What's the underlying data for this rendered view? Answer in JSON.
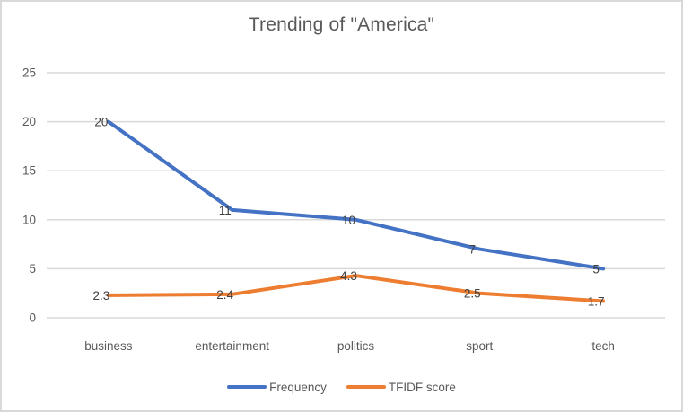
{
  "chart_data": {
    "type": "line",
    "title": "Trending of \"America\"",
    "categories": [
      "business",
      "entertainment",
      "politics",
      "sport",
      "tech"
    ],
    "series": [
      {
        "name": "Frequency",
        "color": "#4472C4",
        "values": [
          20,
          11,
          10,
          7,
          5
        ]
      },
      {
        "name": "TFIDF score",
        "color": "#ED7D31",
        "values": [
          2.3,
          2.4,
          4.3,
          2.5,
          1.7
        ]
      }
    ],
    "ylim": [
      0,
      25
    ],
    "yticks": [
      0,
      5,
      10,
      15,
      20,
      25
    ],
    "grid": true,
    "data_labels": true,
    "legend_position": "bottom"
  },
  "colors": {
    "gridline": "#d9d9d9",
    "axis_text": "#595959",
    "title_text": "#595959",
    "data_label": "#404040",
    "frame_border": "#d9d9d9",
    "background": "#ffffff"
  }
}
